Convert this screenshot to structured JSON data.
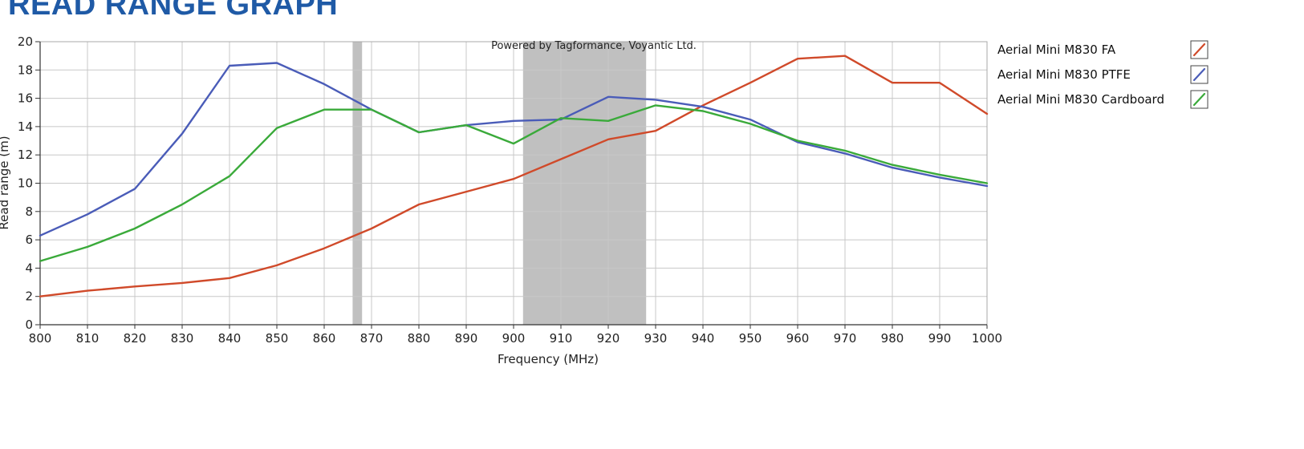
{
  "page": {
    "heading": "READ RANGE GRAPH"
  },
  "chart_data": {
    "type": "line",
    "title": "",
    "watermark": "Powered by Tagformance, Voyantic Ltd.",
    "xlabel": "Frequency (MHz)",
    "ylabel": "Read range (m)",
    "xlim": [
      800,
      1000
    ],
    "ylim": [
      0,
      20
    ],
    "x_ticks": [
      800,
      810,
      820,
      830,
      840,
      850,
      860,
      870,
      880,
      890,
      900,
      910,
      920,
      930,
      940,
      950,
      960,
      970,
      980,
      990,
      1000
    ],
    "y_ticks": [
      0,
      2,
      4,
      6,
      8,
      10,
      12,
      14,
      16,
      18,
      20
    ],
    "grid": true,
    "legend_position": "right",
    "shaded_bands": [
      {
        "from": 866,
        "to": 868,
        "color": "#c0c0c0"
      },
      {
        "from": 902,
        "to": 928,
        "color": "#c0c0c0"
      }
    ],
    "x": [
      800,
      810,
      820,
      830,
      840,
      850,
      860,
      870,
      880,
      890,
      900,
      910,
      920,
      930,
      940,
      950,
      960,
      970,
      980,
      990,
      1000
    ],
    "series": [
      {
        "name": "Aerial Mini M830 FA",
        "color": "#d04a2a",
        "values": [
          2.0,
          2.4,
          2.7,
          2.95,
          3.3,
          4.2,
          5.4,
          6.8,
          8.5,
          9.4,
          10.3,
          11.7,
          13.1,
          13.7,
          15.5,
          17.1,
          18.8,
          19.0,
          17.1,
          17.1,
          14.9
        ]
      },
      {
        "name": "Aerial Mini M830 PTFE",
        "color": "#4a5cb8",
        "values": [
          6.3,
          7.8,
          9.6,
          13.5,
          18.3,
          18.5,
          17.0,
          15.2,
          13.6,
          14.1,
          14.4,
          14.5,
          16.1,
          15.9,
          15.4,
          14.5,
          12.9,
          12.1,
          11.1,
          10.4,
          9.8
        ]
      },
      {
        "name": "Aerial Mini M830 Cardboard",
        "color": "#3aaa3a",
        "values": [
          4.5,
          5.5,
          6.8,
          8.5,
          10.5,
          13.9,
          15.2,
          15.2,
          13.6,
          14.1,
          12.8,
          14.6,
          14.4,
          15.5,
          15.1,
          14.2,
          13.0,
          12.3,
          11.3,
          10.6,
          10.0
        ]
      }
    ]
  }
}
